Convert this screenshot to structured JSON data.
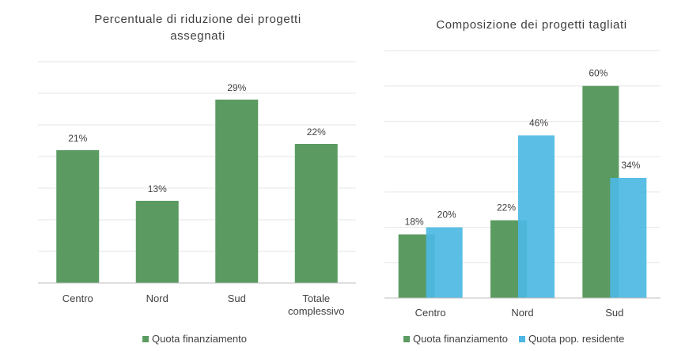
{
  "chart_data": [
    {
      "type": "bar",
      "title": "Percentuale di riduzione dei progetti assegnati",
      "categories": [
        "Centro",
        "Nord",
        "Sud",
        "Totale complessivo"
      ],
      "series": [
        {
          "name": "Quota finanziamento",
          "values": [
            21,
            13,
            29,
            22
          ],
          "labels": [
            "21%",
            "13%",
            "29%",
            "22%"
          ],
          "color": "#5b9b62"
        }
      ],
      "ylim": [
        0,
        35
      ],
      "grid": true,
      "legend": "bottom"
    },
    {
      "type": "bar",
      "title": "Composizione dei progetti tagliati",
      "categories": [
        "Centro",
        "Nord",
        "Sud"
      ],
      "series": [
        {
          "name": "Quota finanziamento",
          "values": [
            18,
            22,
            60
          ],
          "labels": [
            "18%",
            "22%",
            "60%"
          ],
          "color": "#5b9b62"
        },
        {
          "name": "Quota pop. residente",
          "values": [
            20,
            46,
            34
          ],
          "labels": [
            "20%",
            "46%",
            "34%"
          ],
          "color": "#4cb8e3"
        }
      ],
      "ylim": [
        0,
        70
      ],
      "grid": true,
      "legend": "bottom"
    }
  ]
}
